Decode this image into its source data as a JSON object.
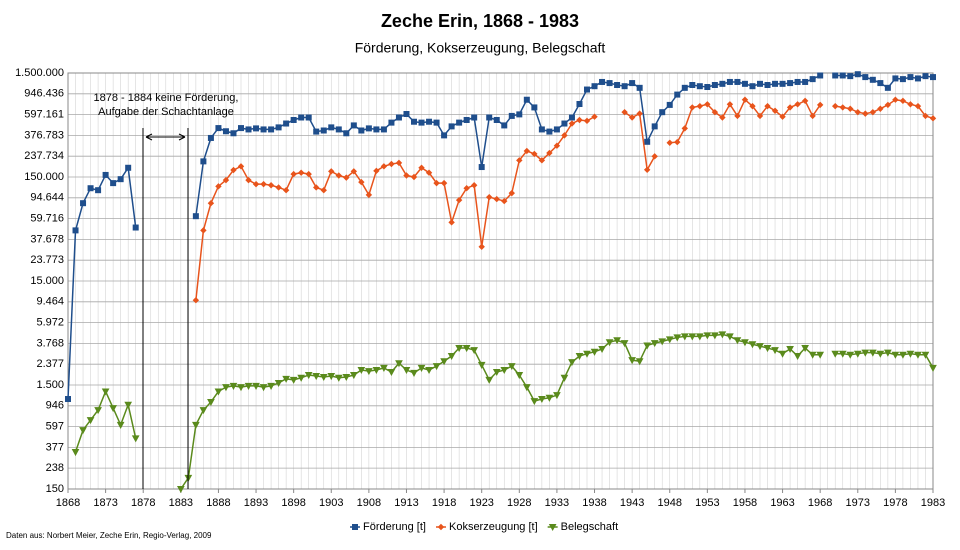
{
  "chart_data": {
    "type": "line",
    "title": "Zeche Erin, 1868 - 1983",
    "subtitle": "Förderung, Kokserzeugung, Belegschaft",
    "annotation": [
      "1878 - 1884 keine Förderung,",
      "Aufgabe der Schachtanlage"
    ],
    "source": "Daten aus: Norbert Meier, Zeche Erin, Regio-Verlag, 2009",
    "log_scale": true,
    "grid": true,
    "legend": "bottom",
    "xlim": [
      1868,
      1983
    ],
    "xticks": [
      1868,
      1873,
      1878,
      1883,
      1888,
      1893,
      1898,
      1903,
      1908,
      1913,
      1918,
      1923,
      1928,
      1933,
      1938,
      1943,
      1948,
      1953,
      1958,
      1963,
      1968,
      1973,
      1978,
      1983
    ],
    "ylim": [
      150,
      1500000
    ],
    "yticks": [
      {
        "value": 150,
        "label": "150"
      },
      {
        "value": 238,
        "label": "238"
      },
      {
        "value": 377,
        "label": "377"
      },
      {
        "value": 597,
        "label": "597"
      },
      {
        "value": 946,
        "label": "946"
      },
      {
        "value": 1500,
        "label": "1.500"
      },
      {
        "value": 2377,
        "label": "2.377"
      },
      {
        "value": 3768,
        "label": "3.768"
      },
      {
        "value": 5972,
        "label": "5.972"
      },
      {
        "value": 9464,
        "label": "9.464"
      },
      {
        "value": 15000,
        "label": "15.000"
      },
      {
        "value": 23773,
        "label": "23.773"
      },
      {
        "value": 37678,
        "label": "37.678"
      },
      {
        "value": 59716,
        "label": "59.716"
      },
      {
        "value": 94644,
        "label": "94.644"
      },
      {
        "value": 150000,
        "label": "150.000"
      },
      {
        "value": 237734,
        "label": "237.734"
      },
      {
        "value": 376783,
        "label": "376.783"
      },
      {
        "value": 597161,
        "label": "597.161"
      },
      {
        "value": 946436,
        "label": "946.436"
      },
      {
        "value": 1500000,
        "label": "1.500.000"
      }
    ],
    "x": [
      1868,
      1869,
      1870,
      1871,
      1872,
      1873,
      1874,
      1875,
      1876,
      1877,
      1878,
      1879,
      1880,
      1881,
      1882,
      1883,
      1884,
      1885,
      1886,
      1887,
      1888,
      1889,
      1890,
      1891,
      1892,
      1893,
      1894,
      1895,
      1896,
      1897,
      1898,
      1899,
      1900,
      1901,
      1902,
      1903,
      1904,
      1905,
      1906,
      1907,
      1908,
      1909,
      1910,
      1911,
      1912,
      1913,
      1914,
      1915,
      1916,
      1917,
      1918,
      1919,
      1920,
      1921,
      1922,
      1923,
      1924,
      1925,
      1926,
      1927,
      1928,
      1929,
      1930,
      1931,
      1932,
      1933,
      1934,
      1935,
      1936,
      1937,
      1938,
      1939,
      1940,
      1941,
      1942,
      1943,
      1944,
      1945,
      1946,
      1947,
      1948,
      1949,
      1950,
      1951,
      1952,
      1953,
      1954,
      1955,
      1956,
      1957,
      1958,
      1959,
      1960,
      1961,
      1962,
      1963,
      1964,
      1965,
      1966,
      1967,
      1968,
      1969,
      1970,
      1971,
      1972,
      1973,
      1974,
      1975,
      1976,
      1977,
      1978,
      1979,
      1980,
      1981,
      1982,
      1983
    ],
    "series": [
      {
        "name": "Förderung [t]",
        "color": "#1f4e8c",
        "marker": "square",
        "values": [
          1100,
          46000,
          84000,
          117000,
          112000,
          157000,
          131000,
          143000,
          184000,
          49000,
          null,
          null,
          null,
          null,
          null,
          null,
          null,
          63000,
          212000,
          356000,
          443000,
          413000,
          395000,
          443000,
          430000,
          440000,
          430000,
          430000,
          450000,
          490000,
          530000,
          560000,
          560000,
          410000,
          420000,
          450000,
          430000,
          395000,
          470000,
          420000,
          440000,
          430000,
          430000,
          500000,
          560000,
          605000,
          510000,
          500000,
          510000,
          500000,
          377000,
          460000,
          500000,
          530000,
          560000,
          187000,
          560000,
          530000,
          470000,
          580000,
          600000,
          830000,
          700000,
          430000,
          410000,
          430000,
          490000,
          560000,
          755000,
          1040000,
          1120000,
          1230000,
          1200000,
          1150000,
          1120000,
          1200000,
          1080000,
          327000,
          460000,
          630000,
          740000,
          930000,
          1080000,
          1150000,
          1120000,
          1100000,
          1150000,
          1180000,
          1230000,
          1230000,
          1180000,
          1120000,
          1180000,
          1150000,
          1180000,
          1180000,
          1200000,
          1230000,
          1230000,
          1310000,
          1420000,
          null,
          1420000,
          1420000,
          1400000,
          1460000,
          1370000,
          1290000,
          1200000,
          1080000,
          1330000,
          1310000,
          1370000,
          1330000,
          1400000,
          1370000
        ]
      },
      {
        "name": "Kokserzeugung [t]",
        "color": "#e8541c",
        "marker": "diamond",
        "values": [
          null,
          null,
          null,
          null,
          null,
          null,
          null,
          null,
          null,
          null,
          null,
          null,
          null,
          null,
          null,
          null,
          null,
          9800,
          46000,
          84000,
          122000,
          140000,
          175000,
          190000,
          140000,
          128000,
          128000,
          125000,
          119000,
          112000,
          160000,
          165000,
          160000,
          119000,
          112000,
          170000,
          155000,
          148000,
          170000,
          134000,
          101000,
          172000,
          190000,
          200000,
          205000,
          155000,
          150000,
          184000,
          165000,
          131000,
          131000,
          55000,
          90000,
          117000,
          125000,
          32000,
          96000,
          92000,
          88000,
          105000,
          217000,
          267000,
          250000,
          217000,
          255000,
          300000,
          377000,
          490000,
          530000,
          520000,
          570000,
          null,
          null,
          null,
          630000,
          560000,
          610000,
          176000,
          237000,
          null,
          320000,
          325000,
          440000,
          700000,
          720000,
          750000,
          630000,
          560000,
          750000,
          580000,
          830000,
          720000,
          580000,
          720000,
          650000,
          570000,
          700000,
          750000,
          810000,
          580000,
          740000,
          null,
          720000,
          700000,
          680000,
          630000,
          610000,
          630000,
          680000,
          740000,
          830000,
          810000,
          750000,
          720000,
          580000,
          550000
        ]
      },
      {
        "name": "Belegschaft",
        "color": "#5a8a1c",
        "marker": "triangle",
        "values": [
          null,
          340,
          553,
          690,
          860,
          1300,
          900,
          620,
          970,
          460,
          null,
          null,
          null,
          null,
          null,
          150,
          192,
          620,
          860,
          1030,
          1300,
          1430,
          1470,
          1430,
          1470,
          1470,
          1430,
          1470,
          1570,
          1720,
          1680,
          1760,
          1870,
          1830,
          1790,
          1830,
          1760,
          1790,
          1870,
          2090,
          2040,
          2090,
          2190,
          2000,
          2430,
          2090,
          1960,
          2190,
          2090,
          2280,
          2540,
          2850,
          3400,
          3400,
          3250,
          2340,
          1680,
          2000,
          2090,
          2280,
          1870,
          1430,
          1050,
          1100,
          1130,
          1200,
          1760,
          2490,
          2850,
          3000,
          3130,
          3330,
          3870,
          4040,
          3790,
          2600,
          2540,
          3600,
          3790,
          3940,
          4120,
          4300,
          4400,
          4400,
          4400,
          4500,
          4500,
          4600,
          4400,
          4040,
          3870,
          3700,
          3550,
          3400,
          3250,
          3000,
          3330,
          2850,
          3400,
          2930,
          2930,
          null,
          3000,
          3000,
          2930,
          3000,
          3070,
          3070,
          3000,
          3070,
          2930,
          2930,
          3000,
          2930,
          2930,
          2190
        ]
      }
    ]
  }
}
